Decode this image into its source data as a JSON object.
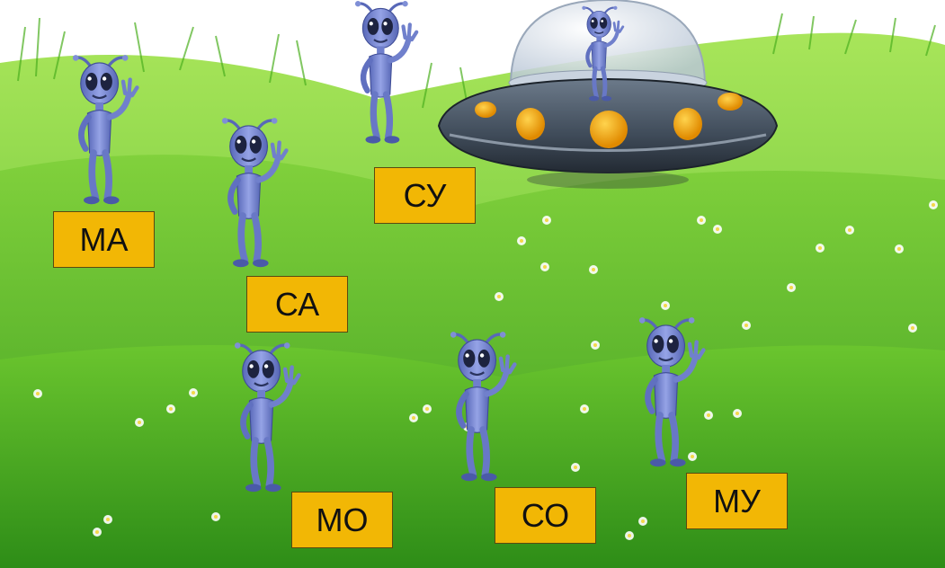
{
  "colors": {
    "sky": "#ffffff",
    "grass_light": "#9be04a",
    "grass_mid": "#5cc22a",
    "grass_dark": "#2f8f1a",
    "alien_body": "#7f8fd6",
    "alien_shade": "#4a5aa8",
    "card_bg": "#f2b705",
    "ufo_body": "#4d5b6b",
    "ufo_light": "#f2a90d"
  },
  "icons": {
    "alien": "alien-icon",
    "ufo": "ufo-icon",
    "flower": "daisy-icon"
  },
  "syllables": [
    {
      "id": "ma",
      "text": "МА"
    },
    {
      "id": "sa",
      "text": "СА"
    },
    {
      "id": "su",
      "text": "СУ"
    },
    {
      "id": "mo",
      "text": "МО"
    },
    {
      "id": "so",
      "text": "СО"
    },
    {
      "id": "mu",
      "text": "МУ"
    }
  ]
}
